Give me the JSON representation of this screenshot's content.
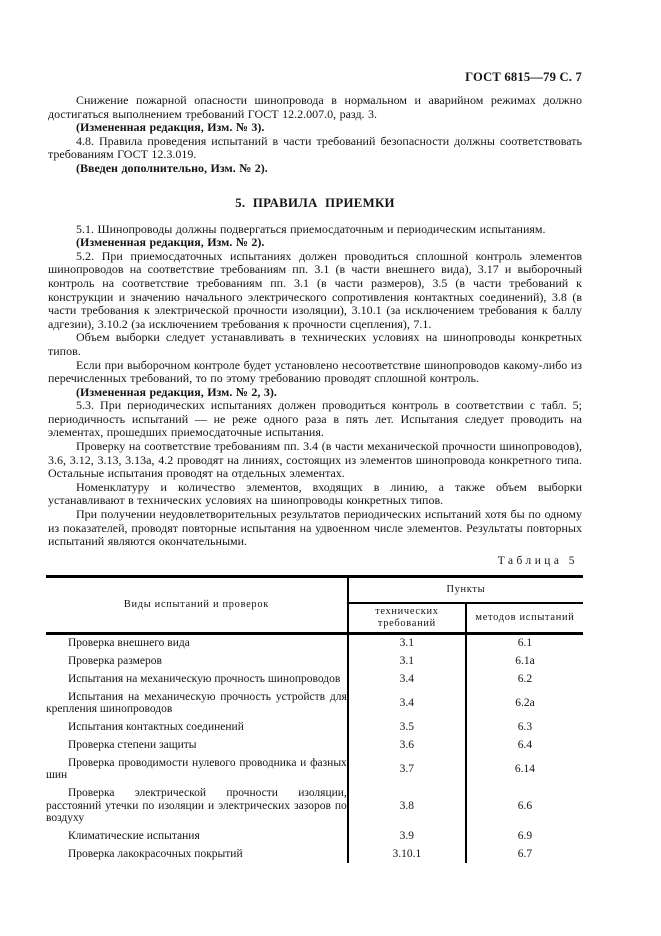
{
  "header": {
    "text": "ГОСТ 6815—79 С. 7"
  },
  "section4": {
    "paragraphs": [
      {
        "text": "Снижение пожарной опасности шинопровода в нормальном и аварийном режимах должно достигаться выполнением требований ГОСТ 12.2.007.0, разд. 3.",
        "bold": false
      },
      {
        "text": "(Измененная редакция, Изм. № 3).",
        "bold": true
      },
      {
        "text": "4.8. Правила проведения испытаний в части требований безопасности должны соответствовать требованиям ГОСТ 12.3.019.",
        "bold": false
      },
      {
        "text": "(Введен дополнительно, Изм. № 2).",
        "bold": true
      }
    ]
  },
  "section5": {
    "heading": "5. ПРАВИЛА ПРИЕМКИ",
    "paragraphs": [
      {
        "text": "5.1. Шинопроводы должны подвергаться приемосдаточным и периодическим испытаниям.",
        "bold": false
      },
      {
        "text": "(Измененная редакция, Изм. № 2).",
        "bold": true
      },
      {
        "text": "5.2. При приемосдаточных испытаниях должен проводиться сплошной контроль элементов шинопроводов на соответствие требованиям пп. 3.1 (в части внешнего вида), 3.17 и выборочный контроль на соответствие требованиям пп. 3.1 (в части размеров), 3.5 (в части требований к конструкции и значению начального электрического сопротивления контактных соединений), 3.8 (в части требования к электрической прочности изоляции), 3.10.1 (за исключением требования к баллу адгезии), 3.10.2 (за исключением требования к прочности сцепления), 7.1.",
        "bold": false
      },
      {
        "text": "Объем выборки следует устанавливать в технических условиях на шинопроводы конкретных типов.",
        "bold": false
      },
      {
        "text": "Если при выборочном контроле будет установлено несоответствие шинопроводов какому-либо из перечисленных требований, то по этому требованию проводят сплошной контроль.",
        "bold": false
      },
      {
        "text": "(Измененная редакция, Изм. № 2, 3).",
        "bold": true
      },
      {
        "text": "5.3. При периодических испытаниях должен проводиться контроль в соответствии с табл. 5; периодичность испытаний — не реже одного раза в пять лет. Испытания следует проводить на элементах, прошедших приемосдаточные испытания.",
        "bold": false
      },
      {
        "text": "Проверку на соответствие требованиям пп. 3.4 (в части механической прочности шинопроводов), 3.6, 3.12, 3.13, 3.13а, 4.2 проводят на линиях, состоящих из элементов шинопровода конкретного типа. Остальные испытания проводят на отдельных элементах.",
        "bold": false
      },
      {
        "text": "Номенклатуру и количество элементов, входящих в линию, а также объем выборки устанавливают в технических условиях на шинопроводы конкретных типов.",
        "bold": false
      },
      {
        "text": "При получении неудовлетворительных результатов периодических испытаний хотя бы по одному из показателей, проводят повторные испытания на удвоенном числе элементов. Результаты повторных испытаний являются окончательными.",
        "bold": false
      }
    ]
  },
  "table": {
    "label": "Таблица 5",
    "columns": {
      "tests": "Виды испытаний и проверок",
      "group": "Пункты",
      "sub_tech": "технических требований",
      "sub_method": "методов испытаний"
    },
    "rows": [
      {
        "name": "Проверка внешнего вида",
        "tech": "3.1",
        "method": "6.1"
      },
      {
        "name": "Проверка размеров",
        "tech": "3.1",
        "method": "6.1а"
      },
      {
        "name": "Испытания на механическую прочность шинопроводов",
        "tech": "3.4",
        "method": "6.2"
      },
      {
        "name": "Испытания на механическую прочность устройств для крепления шинопроводов",
        "tech": "3.4",
        "method": "6.2а"
      },
      {
        "name": "Испытания контактных соединений",
        "tech": "3.5",
        "method": "6.3"
      },
      {
        "name": "Проверка степени защиты",
        "tech": "3.6",
        "method": "6.4"
      },
      {
        "name": "Проверка проводимости нулевого проводника и фазных шин",
        "tech": "3.7",
        "method": "6.14"
      },
      {
        "name": "Проверка электрической прочности изоляции, расстояний утечки по изоляции и электрических зазоров по воздуху",
        "tech": "3.8",
        "method": "6.6"
      },
      {
        "name": "Климатические испытания",
        "tech": "3.9",
        "method": "6.9"
      },
      {
        "name": "Проверка лакокрасочных покрытий",
        "tech": "3.10.1",
        "method": "6.7"
      }
    ]
  }
}
